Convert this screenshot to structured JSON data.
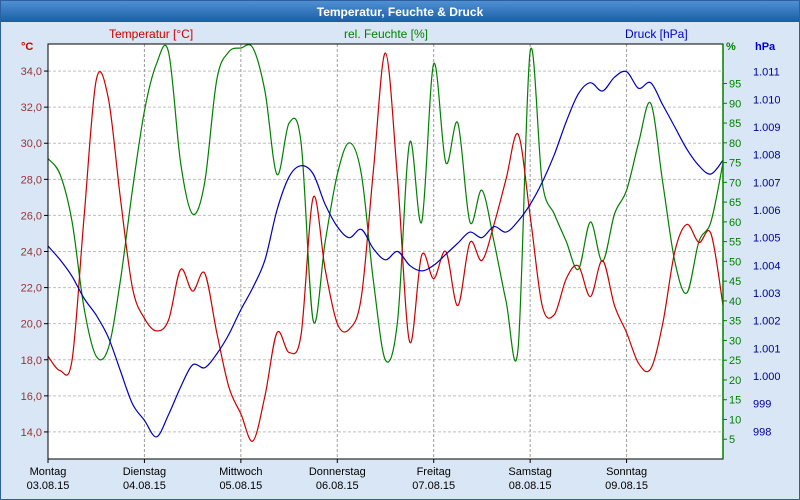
{
  "window": {
    "title": "Temperatur, Feuchte & Druck"
  },
  "colors": {
    "titlebar_start": "#4e90d2",
    "titlebar_end": "#1b5ea7",
    "window_border": "#2e5f9e",
    "background": "#d9e6f5",
    "temperature": "#cc0000",
    "humidity": "#008000",
    "pressure": "#0000bb"
  },
  "chart_data": {
    "type": "line",
    "title": "Temperatur, Feuchte & Druck",
    "sample_interval_hours": 3,
    "x_range_days": 7,
    "layout": {
      "plot_background": "#ffffff",
      "h_grid": "#bfbfbf",
      "v_grid": "#9e9e9e",
      "grid": true,
      "legend_position": "top"
    },
    "x_days": [
      {
        "weekday": "Montag",
        "date": "03.08.15"
      },
      {
        "weekday": "Dienstag",
        "date": "04.08.15"
      },
      {
        "weekday": "Mittwoch",
        "date": "05.08.15"
      },
      {
        "weekday": "Donnerstag",
        "date": "06.08.15"
      },
      {
        "weekday": "Freitag",
        "date": "07.08.15"
      },
      {
        "weekday": "Samstag",
        "date": "08.08.15"
      },
      {
        "weekday": "Sonntag",
        "date": "09.08.15"
      }
    ],
    "series": [
      {
        "name": "Temperatur [°C]",
        "data_name": "temperature",
        "color": "#cc0000",
        "axis": {
          "side": "left",
          "unit": "°C",
          "min": 12.5,
          "max": 35.5,
          "label_color": "#993333",
          "ticks": [
            14,
            16,
            18,
            20,
            22,
            24,
            26,
            28,
            30,
            32,
            34
          ],
          "tick_labels": [
            "14,0",
            "16,0",
            "18,0",
            "20,0",
            "22,0",
            "24,0",
            "26,0",
            "28,0",
            "30,0",
            "32,0",
            "34,0"
          ]
        },
        "values": [
          18.2,
          17.4,
          18.0,
          26.0,
          33.5,
          32.5,
          27.0,
          22.0,
          20.3,
          19.6,
          20.2,
          23.0,
          21.8,
          22.8,
          19.5,
          16.5,
          15.0,
          13.5,
          16.0,
          19.5,
          18.4,
          19.4,
          27.0,
          23.0,
          20.0,
          19.7,
          21.5,
          28.5,
          35.0,
          28.0,
          19.0,
          23.8,
          22.5,
          24.0,
          21.0,
          24.5,
          23.5,
          25.5,
          28.0,
          30.5,
          26.0,
          21.0,
          20.5,
          22.5,
          23.2,
          21.5,
          23.5,
          21.0,
          19.5,
          17.8,
          17.5,
          20.0,
          24.0,
          25.5,
          24.5,
          25.0,
          21.0
        ]
      },
      {
        "name": "rel. Feuchte [%]",
        "data_name": "humidity",
        "color": "#008000",
        "axis": {
          "side": "right-inner",
          "unit": "%",
          "min": 0,
          "max": 105,
          "label_color": "#008000",
          "ticks": [
            5,
            10,
            15,
            20,
            25,
            30,
            35,
            40,
            45,
            50,
            55,
            60,
            65,
            70,
            75,
            80,
            85,
            90,
            95
          ],
          "tick_labels": [
            "5",
            "10",
            "15",
            "20",
            "25",
            "30",
            "35",
            "40",
            "45",
            "50",
            "55",
            "60",
            "65",
            "70",
            "75",
            "80",
            "85",
            "90",
            "95"
          ]
        },
        "values": [
          76,
          72,
          60,
          38,
          26,
          28,
          45,
          68,
          88,
          100,
          103,
          75,
          62,
          70,
          96,
          103,
          104,
          104,
          93,
          72,
          85,
          80,
          35,
          55,
          72,
          80,
          72,
          45,
          25,
          35,
          80,
          60,
          100,
          75,
          85,
          60,
          68,
          55,
          40,
          28,
          103,
          70,
          62,
          55,
          48,
          60,
          50,
          62,
          68,
          80,
          90,
          70,
          50,
          42,
          55,
          60,
          75
        ]
      },
      {
        "name": "Druck [hPa]",
        "data_name": "pressure",
        "color": "#0000bb",
        "axis": {
          "side": "right-outer",
          "unit": "hPa",
          "min": 997,
          "max": 1012,
          "label_color": "#000099",
          "ticks": [
            998,
            999,
            1000,
            1001,
            1002,
            1003,
            1004,
            1005,
            1006,
            1007,
            1008,
            1009,
            1010,
            1011
          ],
          "tick_labels": [
            "998",
            "999",
            "1.000",
            "1.001",
            "1.002",
            "1.003",
            "1.004",
            "1.005",
            "1.006",
            "1.007",
            "1.008",
            "1.009",
            "1.010",
            "1.011"
          ]
        },
        "values": [
          1004.7,
          1004.2,
          1003.6,
          1002.8,
          1002.2,
          1001.4,
          1000.2,
          999.0,
          998.4,
          997.8,
          998.6,
          999.6,
          1000.4,
          1000.3,
          1000.8,
          1001.5,
          1002.4,
          1003.2,
          1004.2,
          1006.0,
          1007.2,
          1007.6,
          1007.3,
          1006.2,
          1005.4,
          1005.0,
          1005.3,
          1004.6,
          1004.2,
          1004.5,
          1004.0,
          1003.8,
          1004.0,
          1004.4,
          1004.8,
          1005.2,
          1005.0,
          1005.4,
          1005.2,
          1005.6,
          1006.2,
          1007.0,
          1008.0,
          1009.2,
          1010.2,
          1010.6,
          1010.3,
          1010.8,
          1011.0,
          1010.4,
          1010.6,
          1009.8,
          1009.0,
          1008.2,
          1007.6,
          1007.3,
          1007.8
        ]
      }
    ]
  }
}
